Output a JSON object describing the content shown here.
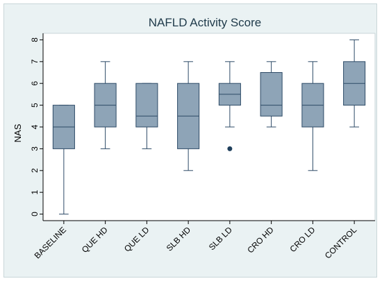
{
  "chart_data": {
    "type": "box",
    "title": "NAFLD Activity Score",
    "xlabel": "",
    "ylabel": "NAS",
    "ylim": [
      -0.3,
      8.3
    ],
    "yticks": [
      0,
      1,
      2,
      3,
      4,
      5,
      6,
      7,
      8
    ],
    "grid": false,
    "legend": "none",
    "colors": {
      "box_fill": "#8ea4b7",
      "box_stroke": "#2c4a66",
      "outlier": "#1f3f5c",
      "background": "#eaf2f3"
    },
    "categories": [
      "BASELINE",
      "QUE HD",
      "QUE LD",
      "SLB HD",
      "SLB LD",
      "CRO HD",
      "CRO LD",
      "CONTROL"
    ],
    "boxes": [
      {
        "min": 0,
        "q1": 3,
        "median": 4,
        "q3": 5,
        "max": 5,
        "outliers": []
      },
      {
        "min": 3,
        "q1": 4,
        "median": 5,
        "q3": 6,
        "max": 7,
        "outliers": []
      },
      {
        "min": 3,
        "q1": 4,
        "median": 4.5,
        "q3": 6,
        "max": 6,
        "outliers": []
      },
      {
        "min": 2,
        "q1": 3,
        "median": 4.5,
        "q3": 6,
        "max": 7,
        "outliers": []
      },
      {
        "min": 4,
        "q1": 5,
        "median": 5.5,
        "q3": 6,
        "max": 7,
        "outliers": [
          3
        ]
      },
      {
        "min": 4,
        "q1": 4.5,
        "median": 5,
        "q3": 6.5,
        "max": 7,
        "outliers": []
      },
      {
        "min": 2,
        "q1": 4,
        "median": 5,
        "q3": 6,
        "max": 7,
        "outliers": []
      },
      {
        "min": 4,
        "q1": 5,
        "median": 6,
        "q3": 7,
        "max": 8,
        "outliers": []
      }
    ]
  }
}
